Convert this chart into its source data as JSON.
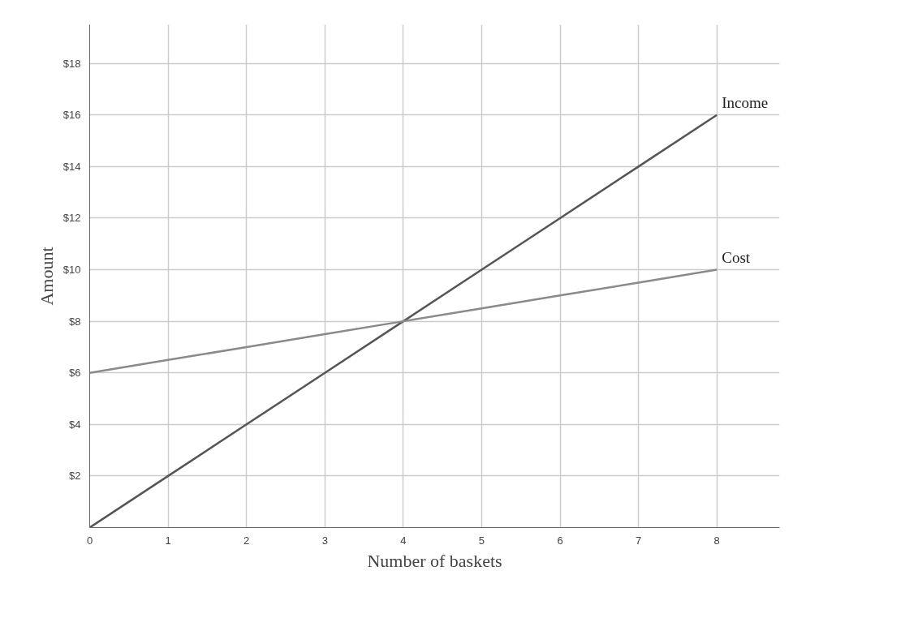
{
  "chart_data": {
    "type": "line",
    "xlabel": "Number of baskets",
    "ylabel": "Amount",
    "x": [
      0,
      1,
      2,
      3,
      4,
      5,
      6,
      7,
      8
    ],
    "series": [
      {
        "name": "Income",
        "color": "#555555",
        "values": [
          0,
          2,
          4,
          6,
          8,
          10,
          12,
          14,
          16
        ]
      },
      {
        "name": "Cost",
        "color": "#8a8a8a",
        "values": [
          6,
          6.5,
          7,
          7.5,
          8,
          8.5,
          9,
          9.5,
          10
        ]
      }
    ],
    "xlim": [
      0,
      8.8
    ],
    "ylim": [
      0,
      19.5
    ],
    "xticks": [
      0,
      1,
      2,
      3,
      4,
      5,
      6,
      7,
      8
    ],
    "yticks": [
      {
        "value": 2,
        "label": "$2"
      },
      {
        "value": 4,
        "label": "$4"
      },
      {
        "value": 6,
        "label": "$6"
      },
      {
        "value": 8,
        "label": "$8"
      },
      {
        "value": 10,
        "label": "$10"
      },
      {
        "value": 12,
        "label": "$12"
      },
      {
        "value": 14,
        "label": "$14"
      },
      {
        "value": 16,
        "label": "$16"
      },
      {
        "value": 18,
        "label": "$18"
      }
    ],
    "grid": true
  }
}
